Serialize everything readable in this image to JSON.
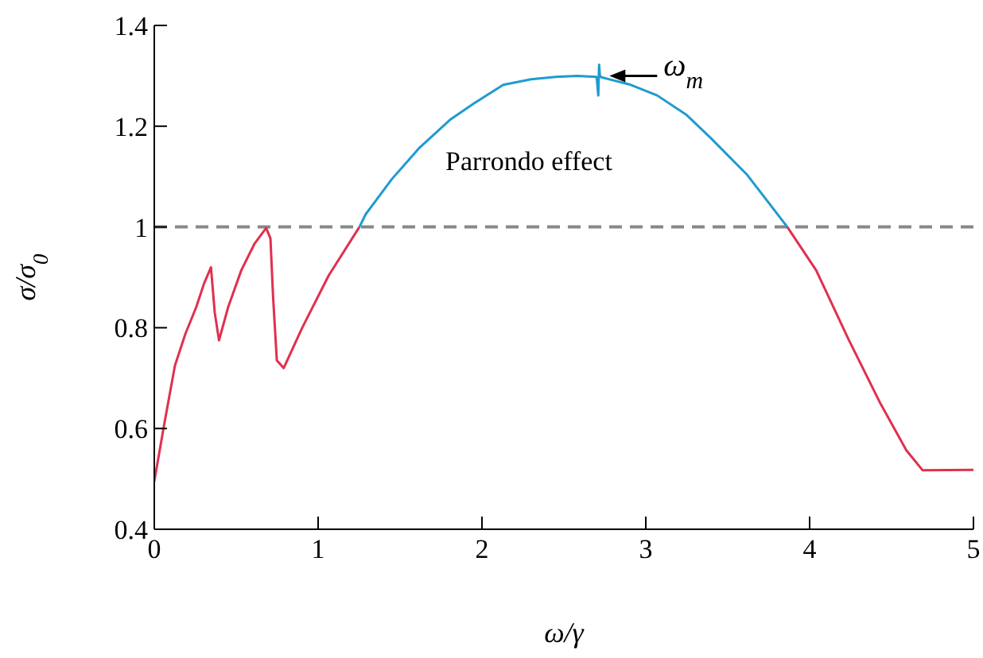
{
  "chart_data": {
    "type": "line",
    "xlabel": "ω/γ",
    "ylabel": "σ/σ$_{0}$",
    "xlim": [
      0,
      5
    ],
    "xticks": [
      0,
      1,
      2,
      3,
      4,
      5
    ],
    "ylim": [
      0.4,
      1.4
    ],
    "yticks": [
      0.4,
      0.6,
      0.8,
      1,
      1.2,
      1.4
    ],
    "marker": "none",
    "line_style": "solid",
    "ref_lines": [
      {
        "axis": "y",
        "value": 1,
        "color": "#888888",
        "line_style": "dashed"
      }
    ],
    "annotations": [
      "Parrondo effect",
      {
        "text": "ω$_{m}$",
        "x": 2.72,
        "y": 1.3
      }
    ],
    "series": [
      {
        "color": "#e0304e",
        "x": [
          0,
          0.061,
          0.126,
          0.19,
          0.255,
          0.304,
          0.346,
          0.369,
          0.395,
          0.45,
          0.531,
          0.612,
          0.683,
          0.709,
          0.725,
          0.748,
          0.79,
          0.903,
          1.065,
          1.252,
          2.5,
          3.864,
          4.04,
          4.236,
          4.43,
          4.59,
          4.69,
          5
        ],
        "values": [
          0.495,
          0.609,
          0.725,
          0.788,
          0.84,
          0.888,
          0.92,
          0.83,
          0.775,
          0.84,
          0.914,
          0.967,
          0.998,
          0.977,
          0.862,
          0.735,
          0.72,
          0.8,
          0.904,
          1.0,
          null,
          1.0,
          0.914,
          0.778,
          0.651,
          0.557,
          0.517,
          0.518
        ]
      },
      {
        "color": "#1f9bd0",
        "x": [
          1.252,
          1.29,
          1.45,
          1.615,
          1.81,
          1.95,
          2.13,
          2.3,
          2.45,
          2.58,
          2.7,
          2.71,
          2.715,
          2.72,
          2.73,
          2.9,
          3.07,
          3.25,
          3.395,
          3.62,
          3.864
        ],
        "values": [
          1.0,
          1.025,
          1.095,
          1.156,
          1.214,
          1.245,
          1.282,
          1.293,
          1.298,
          1.3,
          1.298,
          1.261,
          1.322,
          1.3,
          1.297,
          1.283,
          1.261,
          1.222,
          1.177,
          1.103,
          1.0
        ]
      }
    ]
  }
}
